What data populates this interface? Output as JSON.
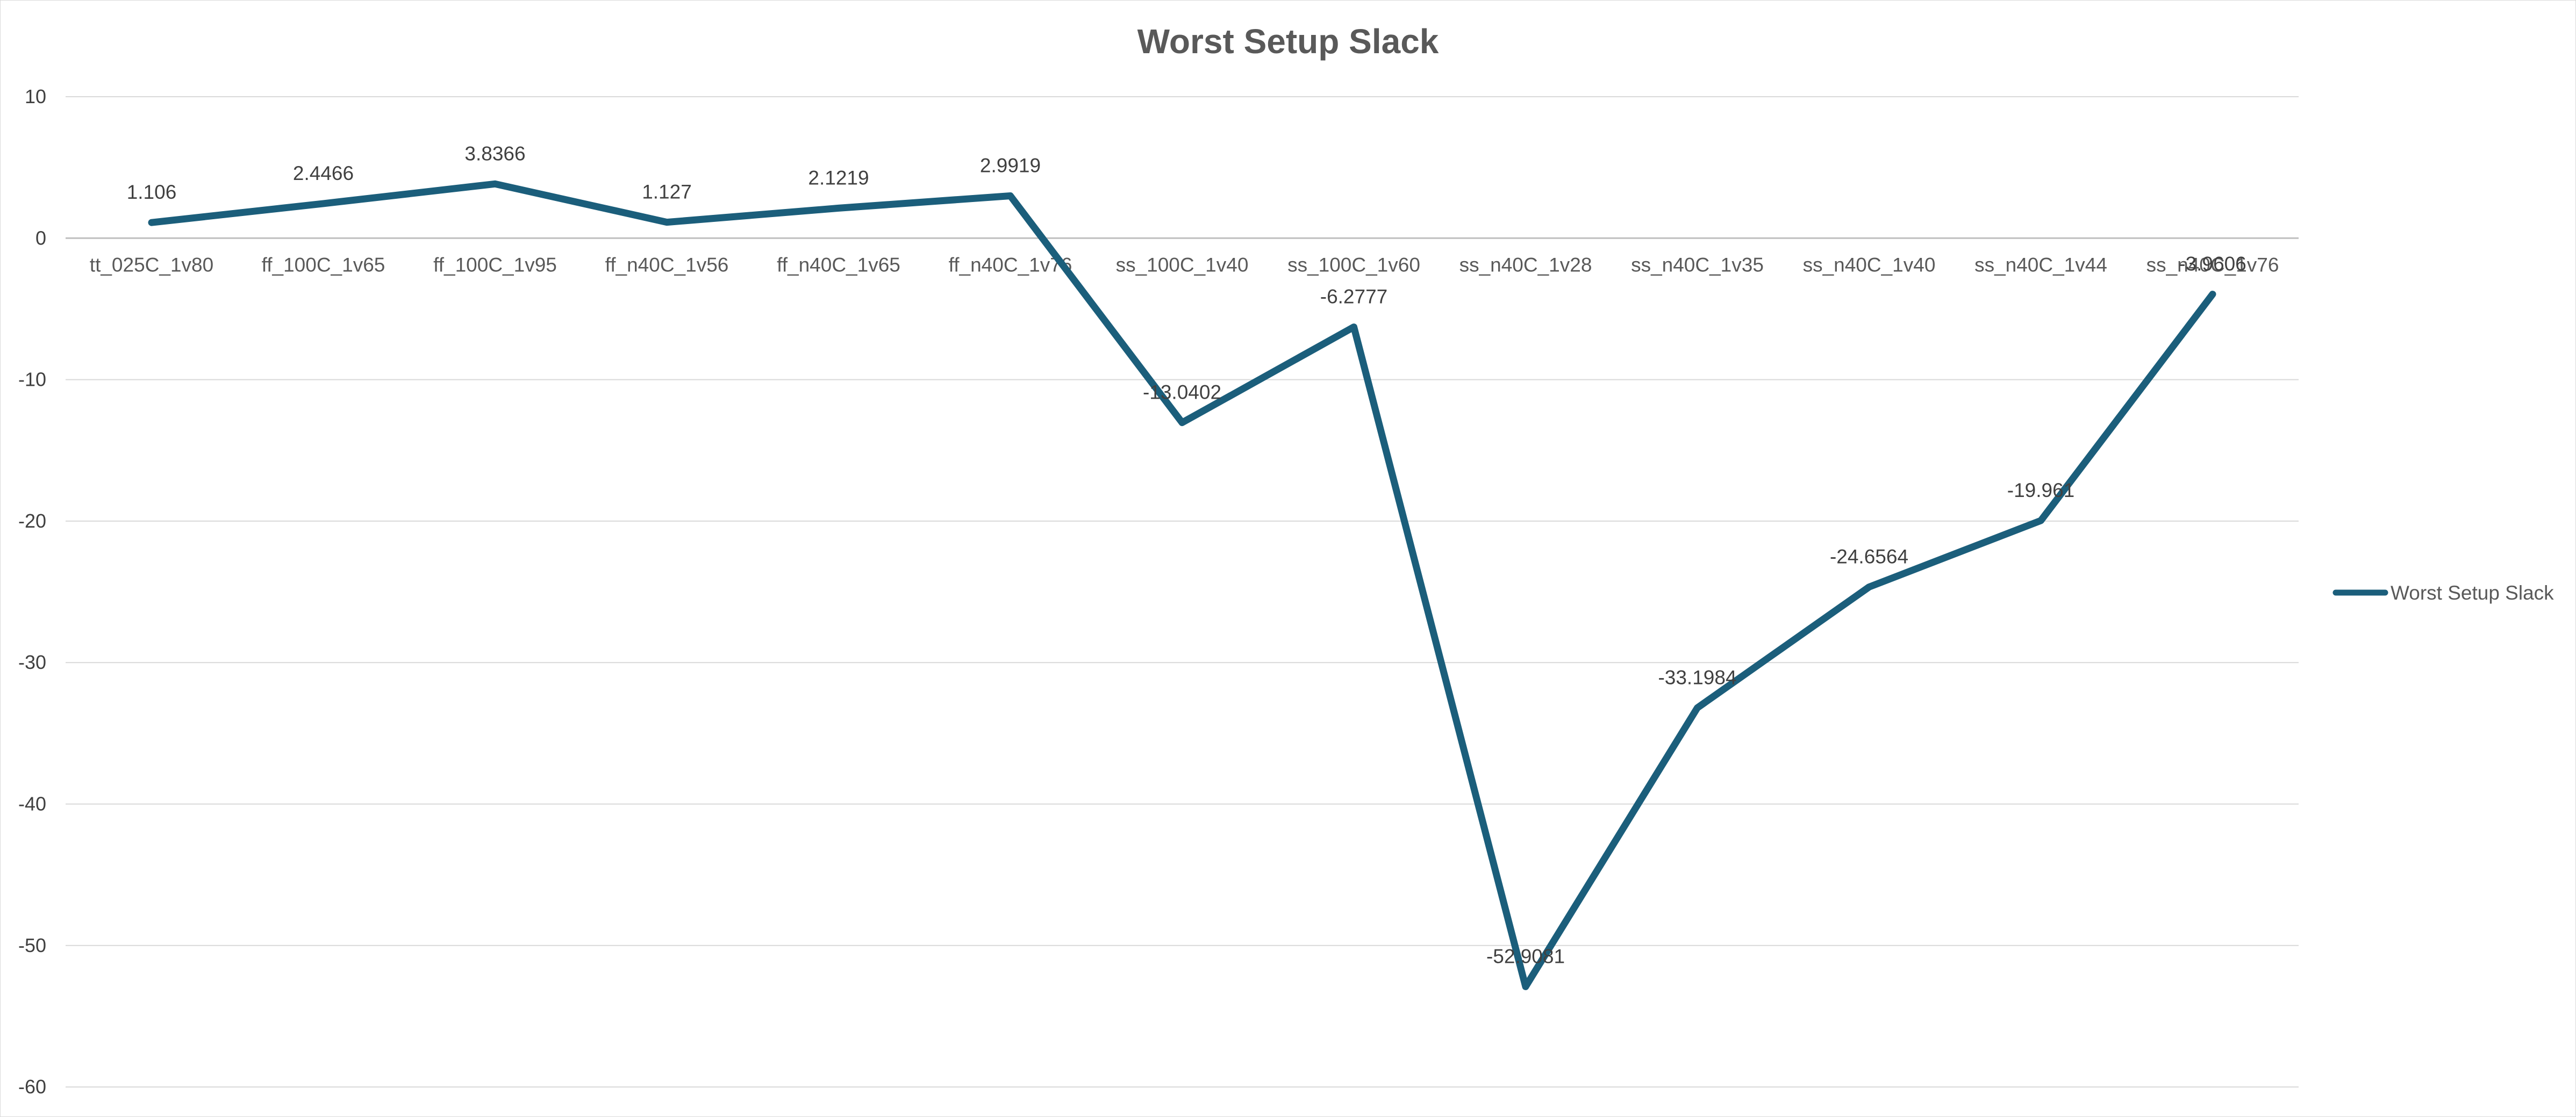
{
  "chart_data": {
    "type": "line",
    "title": "Worst Setup Slack",
    "xlabel": "",
    "ylabel": "",
    "ylim": [
      -60,
      10
    ],
    "yticks": [
      10,
      0,
      -10,
      -20,
      -30,
      -40,
      -50,
      -60
    ],
    "grid": true,
    "legend_position": "right",
    "categories": [
      "tt_025C_1v80",
      "ff_100C_1v65",
      "ff_100C_1v95",
      "ff_n40C_1v56",
      "ff_n40C_1v65",
      "ff_n40C_1v76",
      "ss_100C_1v40",
      "ss_100C_1v60",
      "ss_n40C_1v28",
      "ss_n40C_1v35",
      "ss_n40C_1v40",
      "ss_n40C_1v44",
      "ss_n40C_1v76"
    ],
    "series": [
      {
        "name": "Worst Setup Slack",
        "color": "#1b5e7b",
        "values": [
          1.106,
          2.4466,
          3.8366,
          1.127,
          2.1219,
          2.9919,
          -13.0402,
          -6.2777,
          -52.9081,
          -33.1984,
          -24.6564,
          -19.961,
          -3.9606
        ],
        "labels": [
          "1.106",
          "2.4466",
          "3.8366",
          "1.127",
          "2.1219",
          "2.9919",
          "-13.0402",
          "-6.2777",
          "-52.9081",
          "-33.1984",
          "-24.6564",
          "-19.961",
          "-3.9606"
        ]
      }
    ]
  }
}
